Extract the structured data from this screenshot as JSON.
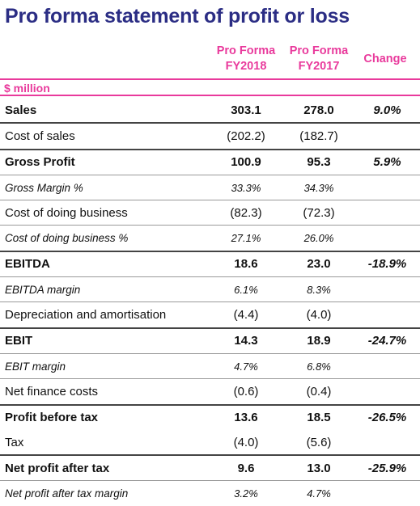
{
  "title": "Pro forma statement of profit or loss",
  "columns": {
    "fy2018": [
      "Pro Forma",
      "FY2018"
    ],
    "fy2017": [
      "Pro Forma",
      "FY2017"
    ],
    "change": "Change"
  },
  "unit": "$ million",
  "accent_color": "#e93a9c",
  "title_color": "#2b2d84",
  "rows": [
    {
      "label": "Sales",
      "fy2018": "303.1",
      "fy2017": "278.0",
      "change": "9.0%"
    },
    {
      "label": "Cost of sales",
      "fy2018": "(202.2)",
      "fy2017": "(182.7)",
      "change": ""
    },
    {
      "label": "Gross Profit",
      "fy2018": "100.9",
      "fy2017": "95.3",
      "change": "5.9%"
    },
    {
      "label": "Gross Margin %",
      "fy2018": "33.3%",
      "fy2017": "34.3%",
      "change": ""
    },
    {
      "label": "Cost of doing business",
      "fy2018": "(82.3)",
      "fy2017": "(72.3)",
      "change": ""
    },
    {
      "label": "Cost of doing business %",
      "fy2018": "27.1%",
      "fy2017": "26.0%",
      "change": ""
    },
    {
      "label": "EBITDA",
      "fy2018": "18.6",
      "fy2017": "23.0",
      "change": "-18.9%"
    },
    {
      "label": "EBITDA margin",
      "fy2018": "6.1%",
      "fy2017": "8.3%",
      "change": ""
    },
    {
      "label": "Depreciation and amortisation",
      "fy2018": "(4.4)",
      "fy2017": "(4.0)",
      "change": ""
    },
    {
      "label": "EBIT",
      "fy2018": "14.3",
      "fy2017": "18.9",
      "change": "-24.7%"
    },
    {
      "label": "EBIT margin",
      "fy2018": "4.7%",
      "fy2017": "6.8%",
      "change": ""
    },
    {
      "label": "Net finance costs",
      "fy2018": "(0.6)",
      "fy2017": "(0.4)",
      "change": ""
    },
    {
      "label": "Profit before tax",
      "fy2018": "13.6",
      "fy2017": "18.5",
      "change": "-26.5%"
    },
    {
      "label": "Tax",
      "fy2018": "(4.0)",
      "fy2017": "(5.6)",
      "change": ""
    },
    {
      "label": "Net profit after tax",
      "fy2018": "9.6",
      "fy2017": "13.0",
      "change": "-25.9%"
    },
    {
      "label": "Net profit after tax margin",
      "fy2018": "3.2%",
      "fy2017": "4.7%",
      "change": ""
    }
  ]
}
